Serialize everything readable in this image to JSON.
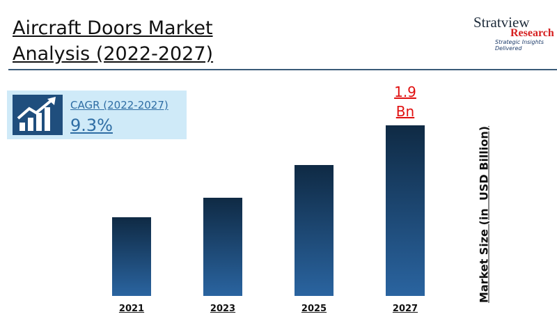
{
  "chart_data": {
    "type": "bar",
    "title": "Aircraft Doors Market Analysis (2022-2027)",
    "y_label": "Market Size (in  USD Billion)",
    "categories": [
      "2021",
      "2023",
      "2025",
      "2027"
    ],
    "values": [
      0.88,
      1.09,
      1.46,
      1.9
    ],
    "value_labels": [
      null,
      null,
      null,
      "1.9 Bn"
    ],
    "color": "#1f4e7d",
    "annotations": {
      "cagr_label": "CAGR (2022-2027)",
      "cagr_value": "9.3%"
    }
  },
  "logo": {
    "name": "Stratview",
    "sub": "Research",
    "tagline": "Strategic Insights Delivered"
  }
}
